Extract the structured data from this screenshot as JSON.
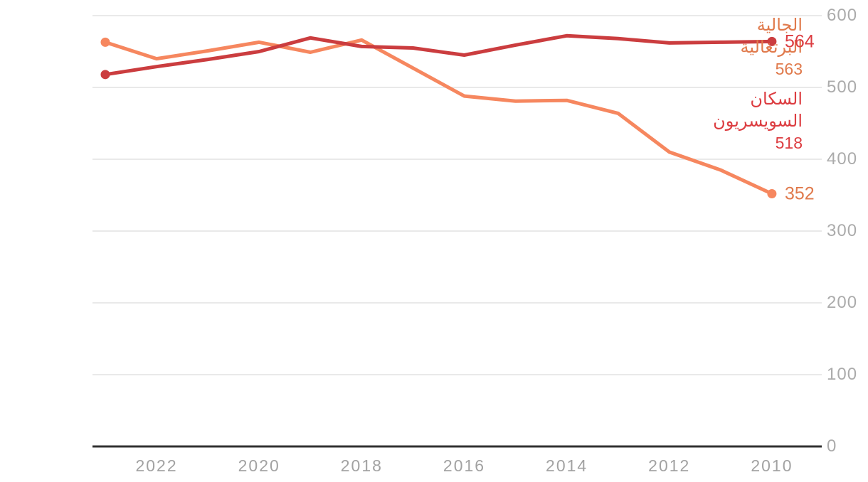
{
  "chart_data": {
    "type": "line",
    "title": "",
    "direction": "rtl",
    "x_years": [
      2023,
      2022,
      2021,
      2020,
      2019,
      2018,
      2017,
      2016,
      2015,
      2014,
      2013,
      2012,
      2011,
      2010
    ],
    "series": [
      {
        "name": "الجالية البرتغالية",
        "name_lines": [
          "الجالية",
          "البرتغالية"
        ],
        "start_label": "563",
        "end_label": "352",
        "color": "#f6875f",
        "label_color": "#e07a4c",
        "values": [
          563,
          540,
          551,
          563,
          549,
          566,
          527,
          488,
          481,
          482,
          464,
          410,
          385,
          352
        ]
      },
      {
        "name": "السكان السويسريون",
        "name_lines": [
          "السكان",
          "السويسريون"
        ],
        "start_label": "518",
        "end_label": "564",
        "color": "#cb3d3f",
        "label_color": "#dc3d41",
        "values": [
          518,
          529,
          539,
          550,
          569,
          557,
          555,
          545,
          559,
          572,
          568,
          562,
          563,
          564
        ]
      }
    ],
    "x_tick_labels": [
      "2022",
      "2020",
      "2018",
      "2016",
      "2014",
      "2012",
      "2010"
    ],
    "y_ticks": [
      600,
      500,
      400,
      300,
      200,
      100,
      0
    ],
    "y_tick_labels": [
      "600",
      "500",
      "400",
      "300",
      "200",
      "100",
      "0"
    ],
    "ylim": [
      0,
      600
    ],
    "grid": "horizontal-gridlines",
    "legend_position": "left",
    "colors": {
      "grid": "#e9e9e9",
      "axis": "#313131",
      "tick_text": "#ababab",
      "background": "#ffffff"
    }
  }
}
